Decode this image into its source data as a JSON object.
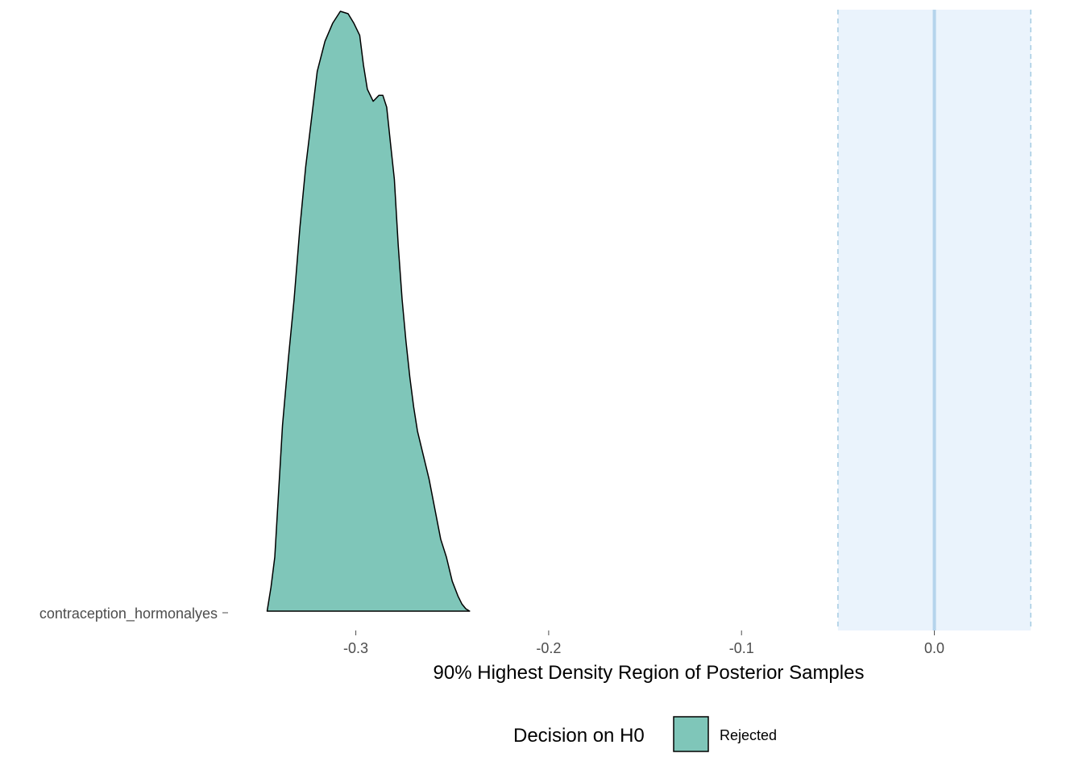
{
  "chart_data": {
    "type": "area",
    "xlabel": "90% Highest Density Region of Posterior Samples",
    "ylabel": "",
    "xlim": [
      -0.365,
      0.052
    ],
    "x_ticks": [
      -0.3,
      -0.2,
      -0.1,
      0.0
    ],
    "x_tick_labels": [
      "-0.3",
      "-0.2",
      "-0.1",
      "0.0"
    ],
    "categories": [
      "contraception_hormonalyes"
    ],
    "rope": {
      "low": -0.05,
      "high": 0.05,
      "center": 0.0
    },
    "grid": false,
    "series": [
      {
        "category": "contraception_hormonalyes",
        "group": "Rejected",
        "density": {
          "x": [
            -0.346,
            -0.344,
            -0.342,
            -0.34,
            -0.338,
            -0.335,
            -0.332,
            -0.329,
            -0.326,
            -0.323,
            -0.32,
            -0.316,
            -0.312,
            -0.308,
            -0.304,
            -0.301,
            -0.298,
            -0.296,
            -0.294,
            -0.291,
            -0.288,
            -0.286,
            -0.284,
            -0.282,
            -0.28,
            -0.278,
            -0.276,
            -0.274,
            -0.272,
            -0.27,
            -0.268,
            -0.265,
            -0.262,
            -0.259,
            -0.256,
            -0.253,
            -0.25,
            -0.247,
            -0.245,
            -0.243,
            -0.241
          ],
          "y": [
            0.0,
            0.04,
            0.09,
            0.2,
            0.31,
            0.42,
            0.52,
            0.64,
            0.74,
            0.82,
            0.9,
            0.95,
            0.98,
            1.0,
            0.996,
            0.98,
            0.96,
            0.91,
            0.87,
            0.85,
            0.86,
            0.86,
            0.84,
            0.78,
            0.72,
            0.61,
            0.52,
            0.45,
            0.39,
            0.34,
            0.3,
            0.26,
            0.22,
            0.17,
            0.12,
            0.09,
            0.05,
            0.025,
            0.012,
            0.004,
            0.0
          ]
        }
      }
    ],
    "colors": {
      "Rejected": "#7fc6b9",
      "outline": "#000000",
      "rope_fill": "#eaf3fc",
      "rope_border": "#a6cce3",
      "rope_center": "#b5d4ec"
    },
    "legend": {
      "title": "Decision on H0",
      "position": "bottom",
      "items": [
        {
          "label": "Rejected",
          "color": "#7fc6b9"
        }
      ]
    }
  }
}
